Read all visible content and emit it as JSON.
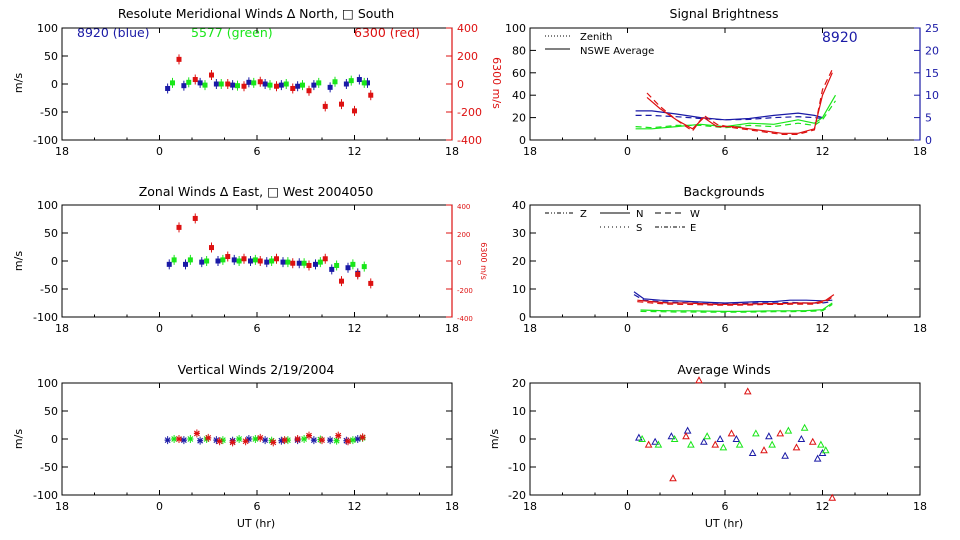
{
  "colors": {
    "blue": "#1a1aa6",
    "green": "#19e619",
    "red": "#dd1111",
    "axis": "#000000"
  },
  "chart_data": [
    {
      "id": "meridional",
      "type": "scatter",
      "title": "Resolute Meridional Winds ∆ North, □ South",
      "xlabel": "",
      "ylabel": "m/s",
      "y2label": "6300 m/s",
      "xlim": [
        18,
        42
      ],
      "ylim": [
        -100,
        100
      ],
      "y2lim": [
        -400,
        400
      ],
      "xticks": [
        18,
        24,
        30,
        36,
        42
      ],
      "xticklabels": [
        "18",
        "0",
        "6",
        "12",
        "18"
      ],
      "yticks": [
        -100,
        -50,
        0,
        50,
        100
      ],
      "y2ticks": [
        -400,
        -200,
        0,
        200,
        400
      ],
      "legend_labels": [
        {
          "text": "8920 (blue)",
          "color": "blue"
        },
        {
          "text": "5577 (green)",
          "color": "green"
        },
        {
          "text": "6300 (red)",
          "color": "red"
        }
      ],
      "series": [
        {
          "color": "blue",
          "marker": "square",
          "x": [
            24.5,
            25.5,
            26.5,
            27.5,
            28.5,
            29.5,
            30.5,
            31.5,
            32.5,
            33.5,
            34.5,
            35.5,
            36.3,
            36.8
          ],
          "y": [
            -8,
            -3,
            2,
            0,
            -2,
            3,
            0,
            -2,
            -4,
            -2,
            -6,
            0,
            8,
            2
          ]
        },
        {
          "color": "green",
          "marker": "square",
          "x": [
            24.8,
            25.8,
            26.8,
            27.8,
            28.8,
            29.8,
            30.8,
            31.8,
            32.8,
            33.8,
            34.8,
            35.8,
            36.6
          ],
          "y": [
            2,
            3,
            -2,
            0,
            -3,
            2,
            -2,
            0,
            -2,
            2,
            4,
            6,
            2
          ]
        },
        {
          "color": "red",
          "marker": "square",
          "x": [
            25.2,
            26.2,
            27.2,
            28.2,
            29.2,
            30.2,
            31.2,
            32.2,
            33.2,
            34.2,
            35.2,
            36.0,
            37.0
          ],
          "y": [
            44,
            8,
            16,
            0,
            -4,
            4,
            -4,
            -8,
            -12,
            -40,
            -36,
            -48,
            -20
          ]
        }
      ]
    },
    {
      "id": "brightness",
      "type": "line",
      "title": "Signal Brightness",
      "xlabel": "",
      "ylabel": "",
      "xlim": [
        18,
        42
      ],
      "ylim": [
        0,
        100
      ],
      "y2lim": [
        0,
        25
      ],
      "xticks": [
        18,
        24,
        30,
        36,
        42
      ],
      "xticklabels": [
        "18",
        "0",
        "6",
        "12",
        "18"
      ],
      "yticks": [
        0,
        20,
        40,
        60,
        80,
        100
      ],
      "y2ticks": [
        0,
        5,
        10,
        15,
        20,
        25
      ],
      "legend_labels": [
        {
          "text": "Zenith",
          "style": "dotted"
        },
        {
          "text": "NSWE Average",
          "style": "solid"
        }
      ],
      "annotation": "8920",
      "series": [
        {
          "color": "blue",
          "style": "solid",
          "axis": "right",
          "x": [
            24.5,
            25.5,
            27,
            28.5,
            30,
            31.5,
            33,
            34.5,
            35.5,
            36
          ],
          "y": [
            6.5,
            6.5,
            5.8,
            5.0,
            4.5,
            4.8,
            5.5,
            6.0,
            5.5,
            5.0
          ]
        },
        {
          "color": "blue",
          "style": "dashed",
          "axis": "right",
          "x": [
            24.5,
            25.5,
            27,
            28.5,
            30,
            31.5,
            33,
            34.5,
            35.5,
            36
          ],
          "y": [
            5.5,
            5.5,
            5.2,
            4.8,
            4.5,
            4.6,
            5.0,
            5.2,
            5.0,
            4.8
          ]
        },
        {
          "color": "green",
          "style": "solid",
          "axis": "left",
          "x": [
            24.5,
            25.5,
            27,
            28.5,
            30,
            31.5,
            33,
            34.5,
            35.5,
            36,
            36.8
          ],
          "y": [
            10,
            10,
            12,
            14,
            12,
            15,
            14,
            18,
            15,
            20,
            40
          ]
        },
        {
          "color": "green",
          "style": "dashed",
          "axis": "left",
          "x": [
            24.5,
            25.5,
            27,
            28.5,
            30,
            31.5,
            33,
            34.5,
            35.5,
            36,
            36.8
          ],
          "y": [
            12,
            11,
            13,
            13,
            11,
            13,
            12,
            15,
            13,
            18,
            35
          ]
        },
        {
          "color": "red",
          "style": "solid",
          "axis": "left",
          "x": [
            25.2,
            26,
            27,
            28,
            28.7,
            29.5,
            30.5,
            31.5,
            32.5,
            33.5,
            34.5,
            35.5,
            36,
            36.6
          ],
          "y": [
            38,
            28,
            18,
            10,
            20,
            12,
            12,
            10,
            8,
            6,
            6,
            10,
            40,
            60
          ]
        },
        {
          "color": "red",
          "style": "dashed",
          "axis": "left",
          "x": [
            25.2,
            26,
            27,
            28,
            28.7,
            29.5,
            30.5,
            31.5,
            32.5,
            33.5,
            34.5,
            35.5,
            36,
            36.6
          ],
          "y": [
            42,
            30,
            18,
            8,
            22,
            14,
            11,
            9,
            7,
            5,
            5,
            9,
            45,
            63
          ]
        }
      ]
    },
    {
      "id": "zonal",
      "type": "scatter",
      "title": "Zonal Winds ∆ East, □ West 2004050",
      "xlabel": "",
      "ylabel": "m/s",
      "y2label": "6300 m/s",
      "xlim": [
        18,
        42
      ],
      "ylim": [
        -100,
        100
      ],
      "y2lim": [
        -400,
        400
      ],
      "xticks": [
        18,
        24,
        30,
        36,
        42
      ],
      "xticklabels": [
        "18",
        "0",
        "6",
        "12",
        "18"
      ],
      "yticks": [
        -100,
        -50,
        0,
        50,
        100
      ],
      "y2ticks": [
        -400,
        -200,
        0,
        200,
        400
      ],
      "series": [
        {
          "color": "blue",
          "marker": "square",
          "x": [
            24.6,
            25.6,
            26.6,
            27.6,
            28.6,
            29.6,
            30.6,
            31.6,
            32.6,
            33.6,
            34.6,
            35.6,
            36.2
          ],
          "y": [
            -6,
            -6,
            -2,
            0,
            2,
            0,
            -2,
            -2,
            -4,
            -6,
            -15,
            -12,
            -22
          ]
        },
        {
          "color": "green",
          "marker": "square",
          "x": [
            24.9,
            25.9,
            26.9,
            27.9,
            28.9,
            29.9,
            30.9,
            31.9,
            32.9,
            33.9,
            34.9,
            35.9,
            36.6
          ],
          "y": [
            2,
            2,
            0,
            2,
            0,
            2,
            0,
            -2,
            -4,
            -2,
            -8,
            -6,
            -10
          ]
        },
        {
          "color": "red",
          "marker": "square",
          "x": [
            25.2,
            26.2,
            27.2,
            28.2,
            29.2,
            30.2,
            31.2,
            32.2,
            33.2,
            34.2,
            35.2,
            36.2,
            37.0
          ],
          "y": [
            60,
            76,
            24,
            8,
            4,
            0,
            4,
            -4,
            -8,
            4,
            -36,
            -24,
            -40
          ]
        }
      ]
    },
    {
      "id": "backgrounds",
      "type": "line",
      "title": "Backgrounds",
      "xlabel": "",
      "ylabel": "",
      "xlim": [
        18,
        42
      ],
      "ylim": [
        0,
        40
      ],
      "xticks": [
        18,
        24,
        30,
        36,
        42
      ],
      "xticklabels": [
        "18",
        "0",
        "6",
        "12",
        "18"
      ],
      "yticks": [
        0,
        10,
        20,
        30,
        40
      ],
      "legend_labels": [
        {
          "text": "Z",
          "style": "dashdot3"
        },
        {
          "text": "N",
          "style": "solid"
        },
        {
          "text": "W",
          "style": "dashed"
        },
        {
          "text": "S",
          "style": "dotted"
        },
        {
          "text": "E",
          "style": "dashdot"
        }
      ],
      "series": [
        {
          "color": "blue",
          "style": "solid",
          "x": [
            24.4,
            25,
            26,
            27,
            28,
            29,
            30,
            31,
            32,
            33,
            34,
            35,
            36,
            36.6
          ],
          "y": [
            9,
            6.5,
            6,
            5.8,
            5.5,
            5.2,
            5.0,
            5.2,
            5.5,
            5.5,
            6,
            6,
            5.8,
            6
          ]
        },
        {
          "color": "blue",
          "style": "dashed",
          "x": [
            24.4,
            25,
            26,
            27,
            28,
            29,
            30,
            31,
            32,
            33,
            34,
            35,
            36,
            36.6
          ],
          "y": [
            8,
            6,
            5.5,
            5.2,
            5.0,
            4.8,
            4.6,
            4.8,
            5.0,
            5.0,
            5.2,
            5.0,
            5.0,
            5.5
          ]
        },
        {
          "color": "red",
          "style": "solid",
          "x": [
            24.6,
            25.5,
            26.5,
            27.5,
            28.5,
            29.5,
            30.5,
            31.5,
            32.5,
            33.5,
            34.5,
            35.5,
            36.2,
            36.7
          ],
          "y": [
            6,
            5.5,
            5.0,
            5.0,
            4.8,
            4.5,
            4.5,
            4.6,
            4.8,
            4.8,
            5.0,
            5.0,
            6,
            8
          ]
        },
        {
          "color": "red",
          "style": "dashed",
          "x": [
            24.6,
            25.5,
            26.5,
            27.5,
            28.5,
            29.5,
            30.5,
            31.5,
            32.5,
            33.5,
            34.5,
            35.5,
            36.2,
            36.7
          ],
          "y": [
            5.5,
            5.0,
            4.6,
            4.5,
            4.4,
            4.2,
            4.2,
            4.3,
            4.5,
            4.5,
            4.6,
            4.6,
            5.5,
            7.5
          ]
        },
        {
          "color": "green",
          "style": "solid",
          "x": [
            24.8,
            26,
            27,
            28,
            29,
            30,
            31,
            32,
            33,
            34,
            35,
            36,
            36.6
          ],
          "y": [
            2.5,
            2.3,
            2.2,
            2.2,
            2.1,
            2.0,
            2.0,
            2.1,
            2.2,
            2.2,
            2.3,
            2.6,
            5
          ]
        },
        {
          "color": "green",
          "style": "dashed",
          "x": [
            24.8,
            26,
            27,
            28,
            29,
            30,
            31,
            32,
            33,
            34,
            35,
            36,
            36.6
          ],
          "y": [
            2.0,
            1.9,
            1.8,
            1.8,
            1.7,
            1.7,
            1.7,
            1.8,
            1.9,
            1.9,
            2.0,
            2.2,
            4.5
          ]
        }
      ]
    },
    {
      "id": "vertical",
      "type": "scatter",
      "title": "Vertical Winds 2/19/2004",
      "xlabel": "UT (hr)",
      "ylabel": "m/s",
      "xlim": [
        18,
        42
      ],
      "ylim": [
        -100,
        100
      ],
      "xticks": [
        18,
        24,
        30,
        36,
        42
      ],
      "xticklabels": [
        "18",
        "0",
        "6",
        "12",
        "18"
      ],
      "yticks": [
        -100,
        -50,
        0,
        50,
        100
      ],
      "series": [
        {
          "color": "blue",
          "marker": "asterisk",
          "x": [
            24.5,
            25.5,
            26.5,
            27.5,
            28.5,
            29.5,
            30.5,
            31.5,
            32.5,
            33.5,
            34.5,
            35.5,
            36.2
          ],
          "y": [
            -2,
            -2,
            -3,
            -2,
            -3,
            0,
            -2,
            -3,
            -2,
            -2,
            -2,
            -3,
            0
          ]
        },
        {
          "color": "green",
          "marker": "asterisk",
          "x": [
            24.9,
            25.9,
            26.9,
            27.9,
            28.9,
            29.9,
            30.9,
            31.9,
            32.9,
            33.9,
            34.9,
            35.9,
            36.5
          ],
          "y": [
            0,
            0,
            0,
            -2,
            0,
            0,
            -3,
            -2,
            0,
            -1,
            -3,
            -2,
            2
          ]
        },
        {
          "color": "red",
          "marker": "asterisk",
          "x": [
            25.2,
            26.3,
            27.0,
            27.7,
            28.5,
            29.3,
            30.2,
            31.0,
            31.7,
            32.5,
            33.2,
            34.0,
            35.0,
            35.6,
            36.5
          ],
          "y": [
            0,
            10,
            2,
            -4,
            -6,
            -4,
            2,
            -6,
            -2,
            0,
            6,
            -2,
            6,
            -4,
            3
          ]
        }
      ]
    },
    {
      "id": "average",
      "type": "scatter",
      "title": "Average Winds",
      "xlabel": "UT (hr)",
      "ylabel": "m/s",
      "xlim": [
        18,
        42
      ],
      "ylim": [
        -20,
        20
      ],
      "xticks": [
        18,
        24,
        30,
        36,
        42
      ],
      "xticklabels": [
        "18",
        "0",
        "6",
        "12",
        "18"
      ],
      "yticks": [
        -20,
        -10,
        0,
        10,
        20
      ],
      "series": [
        {
          "color": "blue",
          "marker": "triangle",
          "x": [
            24.7,
            25.7,
            26.7,
            27.7,
            28.7,
            29.7,
            30.7,
            31.7,
            32.7,
            33.7,
            34.7,
            35.7,
            36.0
          ],
          "y": [
            0.5,
            -1,
            1,
            3,
            -1,
            0,
            0,
            -5,
            1,
            -6,
            0,
            -7,
            -5
          ]
        },
        {
          "color": "green",
          "marker": "triangle",
          "x": [
            24.9,
            25.9,
            26.9,
            27.9,
            28.9,
            29.9,
            30.9,
            31.9,
            32.9,
            33.9,
            34.9,
            35.9,
            36.2
          ],
          "y": [
            0,
            -2,
            0,
            -2,
            1,
            -3,
            -2,
            2,
            -2,
            3,
            4,
            -2,
            -4
          ]
        },
        {
          "color": "red",
          "marker": "triangle",
          "x": [
            25.3,
            26.8,
            27.6,
            28.4,
            29.4,
            30.4,
            31.4,
            32.4,
            33.4,
            34.4,
            35.4,
            36.6
          ],
          "y": [
            -2,
            -14,
            1,
            21,
            -2,
            2,
            17,
            -4,
            2,
            -3,
            -1,
            -21
          ]
        }
      ]
    }
  ]
}
